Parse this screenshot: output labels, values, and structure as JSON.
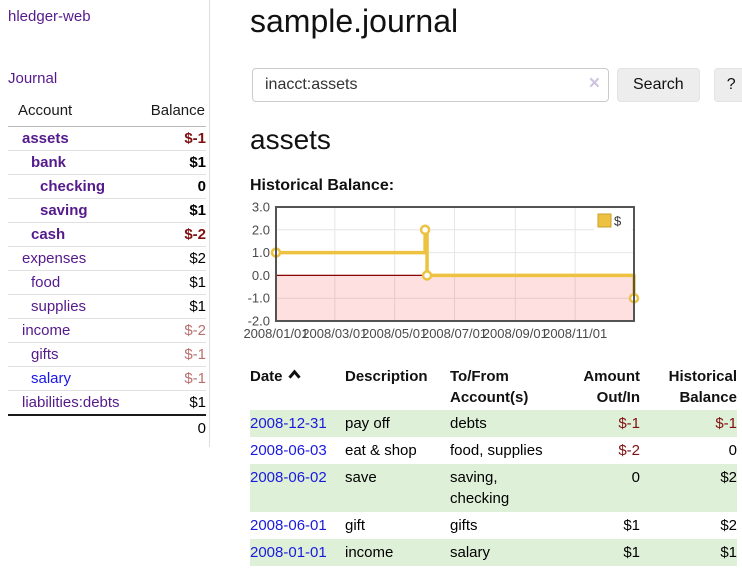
{
  "sidebar": {
    "brand": "hledger-web",
    "journal_link": "Journal",
    "accounts_header": {
      "account": "Account",
      "balance": "Balance"
    },
    "accounts": [
      {
        "name": "assets",
        "balance": "$-1"
      },
      {
        "name": "bank",
        "balance": "$1"
      },
      {
        "name": "checking",
        "balance": "0"
      },
      {
        "name": "saving",
        "balance": "$1"
      },
      {
        "name": "cash",
        "balance": "$-2"
      },
      {
        "name": "expenses",
        "balance": "$2"
      },
      {
        "name": "food",
        "balance": "$1"
      },
      {
        "name": "supplies",
        "balance": "$1"
      },
      {
        "name": "income",
        "balance": "$-2"
      },
      {
        "name": "gifts",
        "balance": "$-1"
      },
      {
        "name": "salary",
        "balance": "$-1"
      },
      {
        "name": "liabilities:debts",
        "balance": "$1"
      }
    ],
    "total": "0"
  },
  "main": {
    "title": "sample.journal",
    "search": {
      "value": "inacct:assets",
      "clear_icon": "×",
      "button_label": "Search",
      "help_label": "?"
    },
    "account_heading": "assets"
  },
  "chart_data": {
    "type": "line",
    "title": "Historical Balance:",
    "legend": [
      {
        "label": "$",
        "color": "#edc240"
      }
    ],
    "legend_position": "top-right",
    "grid": true,
    "ylim": [
      -2,
      3
    ],
    "yticks": [
      3,
      2,
      1,
      0,
      -1,
      -2
    ],
    "ytick_labels": [
      "3.0",
      "2.0",
      "1.0",
      "0.0",
      "-1.0",
      "-2.0"
    ],
    "x_range": [
      "2008-01-01",
      "2008-12-31"
    ],
    "xticks": [
      "2008-01-01",
      "2008-03-01",
      "2008-05-01",
      "2008-07-01",
      "2008-09-01",
      "2008-11-01"
    ],
    "xtick_labels": [
      "2008/01/01",
      "2008/03/01",
      "2008/05/01",
      "2008/07/01",
      "2008/09/01",
      "2008/11/01"
    ],
    "negative_region": true,
    "series": [
      {
        "name": "$",
        "color": "#edc240",
        "step": true,
        "points": [
          [
            "2008-01-01",
            1
          ],
          [
            "2008-06-01",
            2
          ],
          [
            "2008-06-03",
            0
          ],
          [
            "2008-12-31",
            -1
          ]
        ]
      }
    ]
  },
  "register": {
    "headers": {
      "date": "Date",
      "description": "Description",
      "tofrom": "To/From Account(s)",
      "amount": "Amount Out/In",
      "balance": "Historical Balance"
    },
    "rows": [
      {
        "date": "2008-12-31",
        "description": "pay off",
        "tofrom": "debts",
        "amount": "$-1",
        "balance": "$-1"
      },
      {
        "date": "2008-06-03",
        "description": "eat & shop",
        "tofrom": "food, supplies",
        "amount": "$-2",
        "balance": "0"
      },
      {
        "date": "2008-06-02",
        "description": "save",
        "tofrom": "saving, checking",
        "amount": "0",
        "balance": "$2"
      },
      {
        "date": "2008-06-01",
        "description": "gift",
        "tofrom": "gifts",
        "amount": "$1",
        "balance": "$2"
      },
      {
        "date": "2008-01-01",
        "description": "income",
        "tofrom": "salary",
        "amount": "$1",
        "balance": "$1"
      }
    ]
  }
}
